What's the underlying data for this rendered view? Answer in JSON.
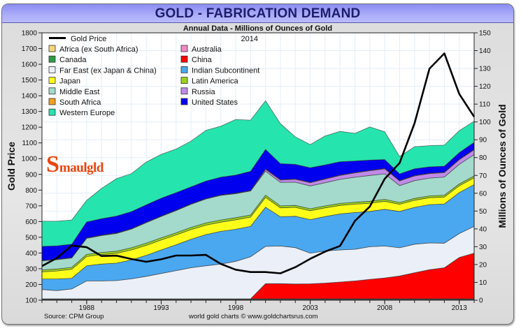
{
  "header": {
    "title": "GOLD - FABRICATION DEMAND",
    "subtitle": "Annual Data - Millions of Ounces of Gold"
  },
  "logo": {
    "initial": "S",
    "rest": "maulgld"
  },
  "footer": {
    "source": "Source: CPM Group",
    "credit": "world gold charts © www.goldchartsrus.com"
  },
  "chart_data": {
    "type": "area",
    "stacked": true,
    "title": "GOLD - FABRICATION DEMAND",
    "subtitle": "Annual Data - Millions of Ounces of Gold",
    "xlabel": "",
    "ylabel_left": "Gold Price",
    "ylabel_right": "Millions of Ounces of Gold",
    "legend_year": "2014",
    "legend_position": "top-left",
    "grid": true,
    "x": [
      1985,
      1986,
      1987,
      1988,
      1989,
      1990,
      1991,
      1992,
      1993,
      1994,
      1995,
      1996,
      1997,
      1998,
      1999,
      2000,
      2001,
      2002,
      2003,
      2004,
      2005,
      2006,
      2007,
      2008,
      2009,
      2010,
      2011,
      2012,
      2013,
      2014
    ],
    "x_ticks": [
      "1988",
      "1993",
      "1998",
      "2003",
      "2008",
      "2013"
    ],
    "x_tick_years": [
      1988,
      1993,
      1998,
      2003,
      2008,
      2013
    ],
    "y_left_range": [
      100,
      1800
    ],
    "y_left_ticks": [
      "100",
      "200",
      "300",
      "400",
      "500",
      "600",
      "700",
      "800",
      "900",
      "1000",
      "1100",
      "1200",
      "1300",
      "1400",
      "1500",
      "1600",
      "1700",
      "1800"
    ],
    "y_right_range": [
      0,
      150
    ],
    "y_right_ticks": [
      "0",
      "10",
      "20",
      "30",
      "40",
      "50",
      "60",
      "70",
      "80",
      "90",
      "100",
      "110",
      "120",
      "130",
      "140",
      "150"
    ],
    "series": [
      {
        "name": "Africa (ex South Africa)",
        "color": "#f4d77c",
        "values": [
          0.3,
          0.3,
          0.3,
          0.3,
          0.3,
          0.3,
          0.3,
          0.3,
          0.3,
          0.3,
          0.3,
          0.3,
          0.3,
          0.3,
          0.3,
          0.3,
          0.3,
          0.3,
          0.3,
          0.3,
          0.3,
          0.3,
          0.3,
          0.3,
          0.3,
          0.3,
          0.3,
          0.3,
          0.3,
          0.3
        ]
      },
      {
        "name": "Australia",
        "color": "#f08ac6",
        "values": [
          0.2,
          0.2,
          0.2,
          0.2,
          0.2,
          0.2,
          0.2,
          0.2,
          0.2,
          0.2,
          0.2,
          0.2,
          0.2,
          0.2,
          0.2,
          0.2,
          0.2,
          0.2,
          0.2,
          0.2,
          0.2,
          0.2,
          0.2,
          0.2,
          0.2,
          0.2,
          0.2,
          0.2,
          0.2,
          0.2
        ]
      },
      {
        "name": "Canada",
        "color": "#2e9a48",
        "values": [
          0.3,
          0.3,
          0.3,
          0.3,
          0.3,
          0.3,
          0.3,
          0.3,
          0.3,
          0.3,
          0.3,
          0.3,
          0.3,
          0.3,
          0.3,
          0.3,
          0.3,
          0.3,
          0.3,
          0.3,
          0.3,
          0.3,
          0.3,
          0.3,
          0.3,
          0.3,
          0.3,
          0.3,
          0.3,
          0.3
        ]
      },
      {
        "name": "China",
        "color": "#ff0000",
        "values": [
          0,
          0,
          0,
          0,
          0,
          0,
          0,
          0,
          0,
          0,
          0,
          0,
          0,
          0,
          0,
          8.5,
          8.5,
          8.3,
          8.4,
          8.8,
          9.4,
          10.0,
          10.9,
          11.7,
          12.8,
          14.6,
          16.3,
          17.4,
          23.2,
          25.6
        ]
      },
      {
        "name": "Far East (ex Japan & China)",
        "color": "#eaeff8",
        "values": [
          5.2,
          4.6,
          5.5,
          10.0,
          10.0,
          10.2,
          11.2,
          12.6,
          14.2,
          15.8,
          17.4,
          18.5,
          19.5,
          21.0,
          23.6,
          20.9,
          21.1,
          20.4,
          17.2,
          18.0,
          18.0,
          17.8,
          18.3,
          17.9,
          15.8,
          16.0,
          15.0,
          13.8,
          13.4,
          15.0
        ]
      },
      {
        "name": "Indian Subcontinent",
        "color": "#4aa8f0",
        "values": [
          5.9,
          6.5,
          6.0,
          8.5,
          9.5,
          9.8,
          10.6,
          11.8,
          13.2,
          14.5,
          16.0,
          17.5,
          18.3,
          18.0,
          17.0,
          22.0,
          16.4,
          17.6,
          18.8,
          19.3,
          20.2,
          20.6,
          19.8,
          20.6,
          20.4,
          20.7,
          21.5,
          22.0,
          23.0,
          23.5
        ]
      },
      {
        "name": "Japan",
        "color": "#ffff1a",
        "values": [
          4.0,
          4.5,
          5.0,
          5.2,
          5.3,
          5.5,
          5.6,
          5.6,
          5.6,
          5.5,
          5.4,
          5.3,
          5.2,
          5.3,
          5.2,
          5.5,
          5.0,
          5.0,
          5.0,
          4.9,
          4.8,
          4.7,
          4.6,
          4.5,
          4.0,
          4.0,
          3.9,
          3.9,
          3.8,
          3.8
        ]
      },
      {
        "name": "Latin America",
        "color": "#9bd31c",
        "values": [
          1.1,
          1.1,
          1.1,
          1.2,
          1.2,
          1.2,
          1.2,
          1.2,
          1.2,
          1.2,
          1.2,
          1.2,
          1.2,
          1.2,
          1.2,
          1.2,
          1.1,
          1.1,
          1.1,
          1.1,
          1.1,
          1.1,
          1.1,
          1.1,
          1.0,
          1.0,
          1.0,
          1.0,
          1.0,
          1.0
        ]
      },
      {
        "name": "Middle East",
        "color": "#a3dacb",
        "values": [
          5.1,
          5.2,
          5.3,
          9.0,
          9.5,
          10.0,
          10.5,
          11.5,
          12.0,
          12.5,
          13.0,
          13.5,
          13.8,
          13.5,
          13.5,
          13.5,
          13.2,
          13.0,
          12.8,
          13.0,
          13.5,
          14.0,
          14.5,
          14.3,
          9.5,
          10.0,
          10.0,
          10.2,
          11.0,
          12.0
        ]
      },
      {
        "name": "Russia",
        "color": "#c08ae8",
        "values": [
          0,
          0,
          0,
          0,
          0,
          0,
          0,
          0,
          0,
          0,
          0,
          0,
          0,
          0,
          0,
          1.0,
          1.3,
          1.6,
          1.8,
          2.0,
          2.2,
          2.4,
          2.6,
          2.8,
          2.6,
          2.6,
          2.5,
          2.5,
          2.6,
          2.7
        ]
      },
      {
        "name": "South Africa",
        "color": "#f0a020",
        "values": [
          0.2,
          0.2,
          0.2,
          0.2,
          0.2,
          0.2,
          0.2,
          0.2,
          0.2,
          0.2,
          0.2,
          0.2,
          0.2,
          0.2,
          0.2,
          0.2,
          0.2,
          0.2,
          0.2,
          0.2,
          0.2,
          0.2,
          0.2,
          0.2,
          0.2,
          0.2,
          0.2,
          0.2,
          0.2,
          0.2
        ]
      },
      {
        "name": "United States",
        "color": "#0000ee",
        "values": [
          7.9,
          7.6,
          7.5,
          9.0,
          9.2,
          9.5,
          9.6,
          9.8,
          10.0,
          9.8,
          9.6,
          9.8,
          10.0,
          10.2,
          10.8,
          11.0,
          9.0,
          8.2,
          8.2,
          7.8,
          7.5,
          6.5,
          5.8,
          5.0,
          3.8,
          3.8,
          3.6,
          3.4,
          3.8,
          4.0
        ]
      },
      {
        "name": "Western Europe",
        "color": "#26e4ad",
        "values": [
          14.1,
          13.8,
          13.6,
          12.1,
          17.0,
          21.0,
          21.3,
          24.0,
          24.6,
          24.5,
          25.6,
          28.5,
          28.6,
          31.2,
          28.7,
          27.3,
          22.4,
          15.4,
          13.0,
          16.2,
          17.0,
          15.5,
          18.6,
          15.6,
          9.7,
          12.4,
          11.9,
          11.8,
          12.3,
          11.8
        ]
      }
    ],
    "gold_price": {
      "name": "Gold Price",
      "color": "#000000",
      "axis": "left",
      "values": [
        317,
        368,
        447,
        437,
        381,
        383,
        362,
        344,
        360,
        384,
        384,
        388,
        331,
        294,
        279,
        279,
        271,
        310,
        363,
        409,
        445,
        604,
        695,
        872,
        972,
        1225,
        1572,
        1669,
        1411,
        1266
      ]
    }
  }
}
